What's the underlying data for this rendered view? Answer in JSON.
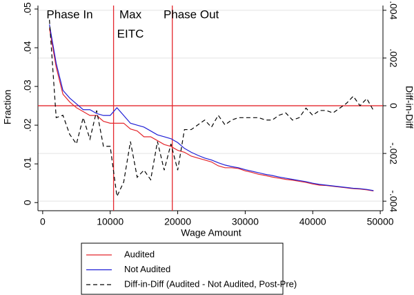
{
  "chart_data": {
    "type": "line",
    "x_label": "Wage Amount",
    "y_label": "Fraction",
    "y2_label": "Diff-in-Diff",
    "annotations": [
      [
        "Phase In"
      ],
      [
        "Max",
        "EITC"
      ],
      [
        "Phase Out"
      ]
    ],
    "annotation_x": [
      4000,
      13000,
      22000
    ],
    "vlines": [
      10500,
      19200
    ],
    "hline_y2": 0,
    "reference_color": "#e4252b",
    "grid": "y2",
    "xlim": [
      -700,
      50400
    ],
    "xticks": [
      0,
      10000,
      20000,
      30000,
      40000,
      50000
    ],
    "ylim": [
      -0.0021,
      0.0509
    ],
    "yticks": [
      0,
      {
        "value": 0.01,
        "label": ".01"
      },
      {
        "value": 0.02,
        "label": ".02"
      },
      {
        "value": 0.03,
        "label": ".03"
      },
      {
        "value": 0.04,
        "label": ".04"
      },
      {
        "value": 0.05,
        "label": ".05"
      }
    ],
    "y2lim": [
      -0.0044,
      0.0042
    ],
    "y2ticks": [
      {
        "value": -0.004,
        "label": "-.004"
      },
      {
        "value": -0.002,
        "label": "-.002"
      },
      0,
      {
        "value": 0.002,
        "label": ".002"
      },
      {
        "value": 0.004,
        "label": ".004"
      }
    ],
    "x": [
      1000,
      2000,
      3000,
      4000,
      5000,
      6000,
      7000,
      8000,
      9000,
      10000,
      11000,
      12000,
      13000,
      14000,
      15000,
      16000,
      17000,
      18000,
      19000,
      20000,
      21000,
      22000,
      23000,
      24000,
      25000,
      26000,
      27000,
      28000,
      29000,
      30000,
      31000,
      32000,
      33000,
      34000,
      35000,
      36000,
      37000,
      38000,
      39000,
      40000,
      41000,
      42000,
      43000,
      44000,
      45000,
      46000,
      47000,
      48000,
      49000
    ],
    "series": [
      {
        "name": "Audited",
        "color": "#e4252b",
        "dash": "solid",
        "values": [
          0.045,
          0.035,
          0.028,
          0.026,
          0.0245,
          0.0235,
          0.0225,
          0.0225,
          0.021,
          0.0205,
          0.0205,
          0.0205,
          0.019,
          0.0185,
          0.017,
          0.017,
          0.016,
          0.015,
          0.0145,
          0.0135,
          0.013,
          0.012,
          0.0115,
          0.011,
          0.0105,
          0.0095,
          0.009,
          0.009,
          0.0088,
          0.0082,
          0.0078,
          0.0073,
          0.007,
          0.0066,
          0.0063,
          0.006,
          0.0058,
          0.0055,
          0.0052,
          0.0048,
          0.0045,
          0.0044,
          0.0042,
          0.004,
          0.0038,
          0.0036,
          0.0035,
          0.0033,
          0.003
        ]
      },
      {
        "name": "Not Audited",
        "color": "#1f1fd6",
        "dash": "solid",
        "values": [
          0.046,
          0.036,
          0.029,
          0.027,
          0.0255,
          0.024,
          0.024,
          0.023,
          0.0225,
          0.0225,
          0.0245,
          0.0225,
          0.0205,
          0.02,
          0.0195,
          0.0185,
          0.0175,
          0.017,
          0.0165,
          0.0155,
          0.014,
          0.013,
          0.0122,
          0.0115,
          0.011,
          0.0103,
          0.0097,
          0.0093,
          0.009,
          0.0085,
          0.0081,
          0.0077,
          0.0073,
          0.007,
          0.0066,
          0.0063,
          0.006,
          0.0057,
          0.0054,
          0.005,
          0.0047,
          0.0045,
          0.0043,
          0.0041,
          0.0039,
          0.0037,
          0.0036,
          0.0034,
          0.0031
        ]
      },
      {
        "name": "Diff-in-Diff (Audited - Not Audited, Post-Pre)",
        "color": "#000000",
        "dash": "dashed",
        "axis": "y2",
        "values": [
          0.0036,
          -0.0005,
          -0.0004,
          -0.0012,
          -0.0016,
          -0.0005,
          -0.0014,
          -0.0002,
          -0.0017,
          -0.0017,
          -0.0038,
          -0.0032,
          -0.0015,
          -0.003,
          -0.0027,
          -0.0031,
          -0.0015,
          -0.0027,
          -0.0016,
          -0.0027,
          -0.001,
          -0.001,
          -0.0008,
          -0.0006,
          -0.0009,
          -0.0004,
          -0.0008,
          -0.0006,
          -0.0005,
          -0.0005,
          -0.0005,
          -0.0005,
          -0.0006,
          -0.0006,
          -0.0004,
          -0.0003,
          -0.0006,
          -0.0005,
          -0.0001,
          -0.0004,
          -0.0002,
          -0.0002,
          -0.0003,
          -0.0001,
          0.0001,
          0.0004,
          0,
          0.0003,
          -0.0002
        ]
      }
    ]
  }
}
